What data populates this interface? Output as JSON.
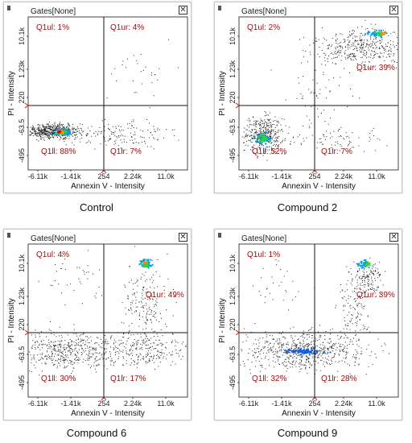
{
  "colors": {
    "quadrant_label": "#a01010",
    "gate_line": "#111111",
    "dot": "#222222"
  },
  "chart_data": [
    {
      "type": "scatter",
      "caption": "Control",
      "gates_label": "Gates[None]",
      "xlabel": "Annexin V - Intensity",
      "ylabel": "PI - Intensity",
      "x_ticks": [
        "-6.11k",
        "-1.41k",
        "254",
        "2.24k",
        "11.0k"
      ],
      "y_ticks": [
        "10.1k",
        "1.23k",
        "220",
        "-63.5",
        "-495"
      ],
      "quadrants": [
        {
          "name": "Q1ul",
          "percent": 1,
          "label": "Q1ul: 1%"
        },
        {
          "name": "Q1ur",
          "percent": 4,
          "label": "Q1ur: 4%"
        },
        {
          "name": "Q1ll",
          "percent": 88,
          "label": "Q1ll: 88%"
        },
        {
          "name": "Q1lr",
          "percent": 7,
          "label": "Q1lr: 7%"
        }
      ]
    },
    {
      "type": "scatter",
      "caption": "Compound 2",
      "gates_label": "Gates[None]",
      "xlabel": "Annexin V - Intensity",
      "ylabel": "PI - Intensity",
      "x_ticks": [
        "-6.11k",
        "-1.41k",
        "254",
        "2.24k",
        "11.0k"
      ],
      "y_ticks": [
        "10.1k",
        "1.23k",
        "220",
        "-63.5",
        "-495"
      ],
      "quadrants": [
        {
          "name": "Q1ul",
          "percent": 2,
          "label": "Q1ul: 2%"
        },
        {
          "name": "Q1ur",
          "percent": 39,
          "label": "Q1ur: 39%"
        },
        {
          "name": "Q1ll",
          "percent": 52,
          "label": "Q1ll: 52%"
        },
        {
          "name": "Q1lr",
          "percent": 7,
          "label": "Q1lr: 7%"
        }
      ]
    },
    {
      "type": "scatter",
      "caption": "Compound 6",
      "gates_label": "Gates[None]",
      "xlabel": "Annexin V - Intensity",
      "ylabel": "PI - Intensity",
      "x_ticks": [
        "-6.11k",
        "-1.41k",
        "254",
        "2.24k",
        "11.0k"
      ],
      "y_ticks": [
        "10.1k",
        "1.23k",
        "220",
        "-63.5",
        "-495"
      ],
      "quadrants": [
        {
          "name": "Q1ul",
          "percent": 4,
          "label": "Q1ul: 4%"
        },
        {
          "name": "Q1ur",
          "percent": 49,
          "label": "Q1ur: 49%"
        },
        {
          "name": "Q1ll",
          "percent": 30,
          "label": "Q1ll: 30%"
        },
        {
          "name": "Q1lr",
          "percent": 17,
          "label": "Q1lr: 17%"
        }
      ]
    },
    {
      "type": "scatter",
      "caption": "Compound 9",
      "gates_label": "Gates[None]",
      "xlabel": "Annexin V - Intensity",
      "ylabel": "PI - Intensity",
      "x_ticks": [
        "-6.11k",
        "-1.41k",
        "254",
        "2.24k",
        "11.0k"
      ],
      "y_ticks": [
        "10.1k",
        "1.23k",
        "220",
        "-63.5",
        "-495"
      ],
      "quadrants": [
        {
          "name": "Q1ul",
          "percent": 1,
          "label": "Q1ul: 1%"
        },
        {
          "name": "Q1ur",
          "percent": 39,
          "label": "Q1ur: 39%"
        },
        {
          "name": "Q1ll",
          "percent": 32,
          "label": "Q1ll: 32%"
        },
        {
          "name": "Q1lr",
          "percent": 28,
          "label": "Q1lr: 28%"
        }
      ]
    }
  ]
}
